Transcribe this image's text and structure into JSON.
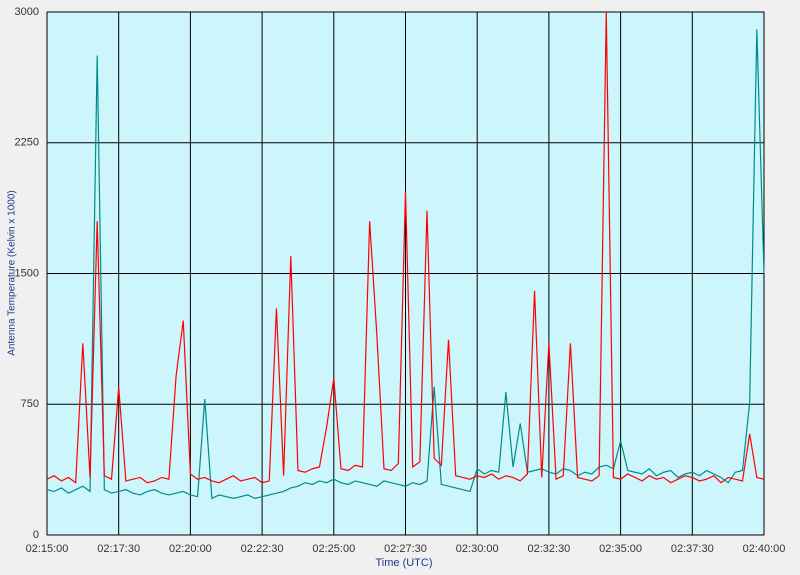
{
  "chart_data": {
    "type": "line",
    "x_label": "Time (UTC)",
    "y_label": "Antenna Temperature (Kelvin x 1000)",
    "x": [
      "02:15:00",
      "02:15:15",
      "02:15:30",
      "02:15:45",
      "02:16:00",
      "02:16:15",
      "02:16:30",
      "02:16:45",
      "02:17:00",
      "02:17:15",
      "02:17:30",
      "02:17:45",
      "02:18:00",
      "02:18:15",
      "02:18:30",
      "02:18:45",
      "02:19:00",
      "02:19:15",
      "02:19:30",
      "02:19:45",
      "02:20:00",
      "02:20:15",
      "02:20:30",
      "02:20:45",
      "02:21:00",
      "02:21:15",
      "02:21:30",
      "02:21:45",
      "02:22:00",
      "02:22:15",
      "02:22:30",
      "02:22:45",
      "02:23:00",
      "02:23:15",
      "02:23:30",
      "02:23:45",
      "02:24:00",
      "02:24:15",
      "02:24:30",
      "02:24:45",
      "02:25:00",
      "02:25:15",
      "02:25:30",
      "02:25:45",
      "02:26:00",
      "02:26:15",
      "02:26:30",
      "02:26:45",
      "02:27:00",
      "02:27:15",
      "02:27:30",
      "02:27:45",
      "02:28:00",
      "02:28:15",
      "02:28:30",
      "02:28:45",
      "02:29:00",
      "02:29:15",
      "02:29:30",
      "02:29:45",
      "02:30:00",
      "02:30:15",
      "02:30:30",
      "02:30:45",
      "02:31:00",
      "02:31:15",
      "02:31:30",
      "02:31:45",
      "02:32:00",
      "02:32:15",
      "02:32:30",
      "02:32:45",
      "02:33:00",
      "02:33:15",
      "02:33:30",
      "02:33:45",
      "02:34:00",
      "02:34:15",
      "02:34:30",
      "02:34:45",
      "02:35:00",
      "02:35:15",
      "02:35:30",
      "02:35:45",
      "02:36:00",
      "02:36:15",
      "02:36:30",
      "02:36:45",
      "02:37:00",
      "02:37:15",
      "02:37:30",
      "02:37:45",
      "02:38:00",
      "02:38:15",
      "02:38:30",
      "02:38:45",
      "02:39:00",
      "02:39:15",
      "02:39:30",
      "02:39:45",
      "02:40:00"
    ],
    "series": [
      {
        "color": "#008b8b",
        "values": [
          260,
          250,
          270,
          240,
          260,
          280,
          250,
          2750,
          260,
          240,
          250,
          260,
          240,
          230,
          250,
          260,
          240,
          230,
          240,
          250,
          230,
          220,
          780,
          210,
          230,
          220,
          210,
          220,
          230,
          210,
          220,
          230,
          240,
          250,
          270,
          280,
          300,
          290,
          310,
          300,
          320,
          300,
          290,
          310,
          300,
          290,
          280,
          310,
          300,
          290,
          280,
          300,
          290,
          310,
          850,
          290,
          280,
          270,
          260,
          250,
          380,
          350,
          370,
          360,
          820,
          390,
          640,
          360,
          370,
          380,
          360,
          350,
          380,
          370,
          340,
          360,
          350,
          390,
          400,
          380,
          540,
          370,
          360,
          350,
          380,
          340,
          360,
          370,
          330,
          350,
          360,
          340,
          370,
          350,
          330,
          300,
          360,
          370,
          760,
          2900,
          1500
        ]
      },
      {
        "color": "#ff0000",
        "values": [
          320,
          340,
          310,
          330,
          300,
          1100,
          330,
          1800,
          340,
          320,
          850,
          310,
          320,
          330,
          300,
          310,
          330,
          320,
          910,
          1230,
          350,
          320,
          330,
          310,
          300,
          320,
          340,
          310,
          320,
          330,
          300,
          310,
          1300,
          340,
          1600,
          370,
          360,
          380,
          390,
          620,
          900,
          380,
          370,
          400,
          390,
          1800,
          1150,
          380,
          370,
          410,
          1970,
          390,
          420,
          1860,
          440,
          400,
          1120,
          340,
          330,
          320,
          340,
          330,
          350,
          320,
          340,
          330,
          310,
          350,
          1400,
          330,
          1100,
          320,
          340,
          1100,
          330,
          320,
          310,
          340,
          3000,
          330,
          320,
          350,
          330,
          310,
          340,
          320,
          330,
          300,
          320,
          340,
          330,
          310,
          320,
          340,
          300,
          330,
          320,
          310,
          580,
          330,
          320
        ]
      }
    ],
    "xlim": [
      "02:15:00",
      "02:40:00"
    ],
    "xticks": [
      "02:15:00",
      "02:17:30",
      "02:20:00",
      "02:22:30",
      "02:25:00",
      "02:27:30",
      "02:30:00",
      "02:32:30",
      "02:35:00",
      "02:37:30",
      "02:40:00"
    ],
    "ylim": [
      0,
      3000
    ],
    "yticks": [
      0,
      750,
      1500,
      2250,
      3000
    ],
    "grid": true,
    "background": "#ccf6fb"
  }
}
